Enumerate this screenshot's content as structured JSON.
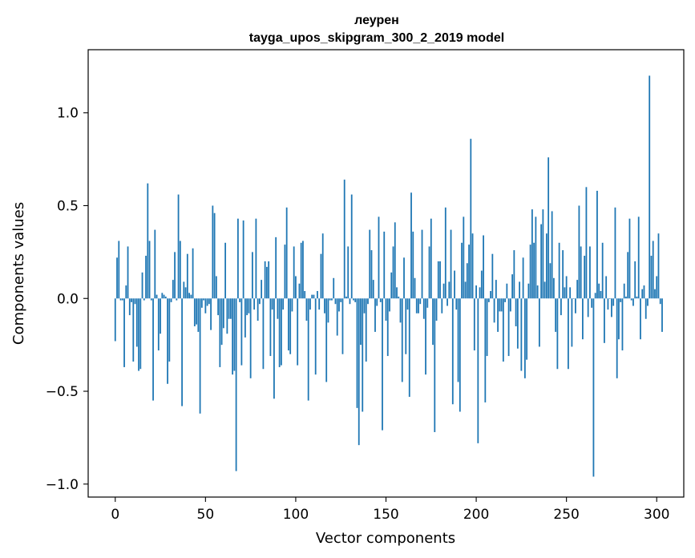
{
  "chart_data": {
    "type": "bar",
    "title": "леурен",
    "subtitle": "tayga_upos_skipgram_300_2_2019 model",
    "xlabel": "Vector components",
    "ylabel": "Components values",
    "xlim": [
      -15,
      315
    ],
    "ylim": [
      -1.07,
      1.34
    ],
    "x_ticks": [
      0,
      50,
      100,
      150,
      200,
      250,
      300
    ],
    "x_tick_labels": [
      "0",
      "50",
      "100",
      "150",
      "200",
      "250",
      "300"
    ],
    "y_ticks": [
      -1.0,
      -0.5,
      0.0,
      0.5,
      1.0
    ],
    "y_tick_labels": [
      "−1.0",
      "−0.5",
      "0.0",
      "0.5",
      "1.0"
    ],
    "grid": false,
    "bar_color": "#1f77b4",
    "x_start": 0,
    "values": [
      -0.23,
      0.22,
      0.31,
      -0.01,
      -0.01,
      -0.37,
      0.07,
      0.28,
      -0.09,
      -0.02,
      -0.34,
      -0.03,
      -0.26,
      -0.39,
      -0.38,
      0.14,
      -0.01,
      0.23,
      0.62,
      0.31,
      -0.01,
      -0.55,
      0.37,
      0.02,
      -0.28,
      -0.19,
      0.03,
      0.02,
      0.01,
      -0.46,
      -0.34,
      -0.02,
      0.1,
      0.25,
      -0.01,
      0.56,
      0.31,
      -0.58,
      0.09,
      0.06,
      0.24,
      0.03,
      0.02,
      0.27,
      -0.15,
      -0.14,
      -0.18,
      -0.62,
      -0.05,
      -0.01,
      -0.08,
      -0.04,
      -0.03,
      -0.17,
      0.5,
      0.46,
      0.12,
      -0.09,
      -0.37,
      -0.25,
      -0.16,
      0.3,
      -0.19,
      -0.11,
      -0.11,
      -0.41,
      -0.39,
      -0.93,
      0.43,
      -0.02,
      -0.36,
      0.42,
      -0.21,
      -0.09,
      -0.08,
      -0.43,
      0.25,
      -0.06,
      0.43,
      -0.12,
      -0.03,
      0.1,
      -0.38,
      0.2,
      0.17,
      0.2,
      -0.31,
      -0.06,
      -0.54,
      0.33,
      -0.11,
      -0.37,
      -0.36,
      -0.06,
      0.29,
      0.49,
      -0.28,
      -0.3,
      -0.07,
      0.28,
      0.12,
      -0.36,
      0.08,
      0.3,
      0.31,
      0.04,
      -0.12,
      -0.55,
      -0.06,
      0.02,
      0.02,
      -0.41,
      0.04,
      -0.06,
      0.24,
      0.35,
      -0.08,
      -0.45,
      -0.13,
      -0.01,
      -0.01,
      0.11,
      -0.03,
      -0.2,
      -0.07,
      -0.02,
      -0.3,
      0.64,
      0.01,
      0.28,
      -0.03,
      0.56,
      -0.01,
      -0.02,
      -0.59,
      -0.79,
      -0.25,
      -0.61,
      -0.08,
      -0.34,
      -0.03,
      0.37,
      0.26,
      0.1,
      -0.18,
      -0.04,
      0.44,
      -0.02,
      -0.71,
      0.36,
      -0.12,
      -0.31,
      -0.07,
      0.14,
      0.28,
      0.41,
      0.06,
      0.01,
      -0.13,
      -0.45,
      0.22,
      -0.3,
      -0.06,
      -0.53,
      0.57,
      0.36,
      0.11,
      -0.08,
      -0.08,
      -0.03,
      0.37,
      -0.11,
      -0.41,
      -0.05,
      0.28,
      0.43,
      -0.25,
      -0.72,
      -0.12,
      0.2,
      0.2,
      -0.08,
      0.08,
      0.49,
      -0.04,
      0.09,
      0.37,
      -0.57,
      0.15,
      -0.06,
      -0.45,
      -0.61,
      0.3,
      0.44,
      0.09,
      0.19,
      0.29,
      0.86,
      0.35,
      -0.28,
      0.07,
      -0.78,
      0.06,
      0.15,
      0.34,
      -0.56,
      -0.31,
      -0.02,
      0.04,
      0.24,
      -0.13,
      0.1,
      -0.18,
      -0.07,
      -0.07,
      -0.34,
      -0.02,
      0.08,
      -0.31,
      -0.07,
      0.13,
      0.26,
      -0.15,
      -0.27,
      0.09,
      -0.39,
      0.22,
      -0.43,
      -0.33,
      0.08,
      0.29,
      0.48,
      0.3,
      0.44,
      0.07,
      -0.26,
      0.4,
      0.48,
      0.09,
      0.35,
      0.76,
      0.19,
      0.47,
      0.11,
      -0.18,
      -0.38,
      0.3,
      -0.09,
      0.26,
      0.06,
      0.12,
      -0.38,
      0.06,
      -0.26,
      0.0,
      -0.08,
      0.1,
      0.5,
      0.28,
      -0.22,
      0.23,
      0.6,
      -0.1,
      0.28,
      -0.05,
      -0.96,
      0.03,
      0.58,
      0.08,
      0.04,
      0.3,
      -0.24,
      0.12,
      -0.06,
      0.0,
      -0.1,
      -0.04,
      0.49,
      -0.43,
      -0.22,
      -0.02,
      -0.28,
      0.08,
      0.01,
      0.25,
      0.43,
      -0.01,
      -0.04,
      0.2,
      0.01,
      0.44,
      -0.22,
      0.05,
      0.07,
      -0.11,
      -0.04,
      1.2,
      0.23,
      0.31,
      0.05,
      0.12,
      0.35,
      -0.03,
      -0.18
    ]
  }
}
